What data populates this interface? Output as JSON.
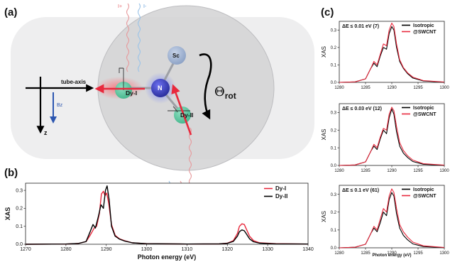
{
  "panels": {
    "a": {
      "label": "(a)",
      "current_plus": "I+",
      "current_minus": "I-",
      "tube_axis_label": "tube-axis",
      "bz_label": "Bz",
      "z_label": "z",
      "atoms": {
        "sc": "Sc",
        "n": "N",
        "dy1": "Dy-I",
        "dy2": "Dy-II"
      },
      "theta_main": "Θ",
      "theta_sub": "rot",
      "colors": {
        "red_arrow": "#e8293d",
        "blue_arrow": "#2c56b0",
        "n_atom": "#3a3fc4",
        "dy_atom": "#5ec9a3",
        "sc_atom": "#a7b9d6"
      }
    },
    "b": {
      "label": "(b)"
    },
    "c": {
      "label": "(c)"
    }
  },
  "chart_data": [
    {
      "id": "b",
      "type": "line",
      "xlabel": "Photon energy (eV)",
      "ylabel": "XAS",
      "xlim": [
        1270,
        1340
      ],
      "ylim": [
        0,
        0.34
      ],
      "xticks": [
        1270,
        1280,
        1290,
        1300,
        1310,
        1320,
        1330,
        1340
      ],
      "yticks": [
        0.0,
        0.1,
        0.2,
        0.3
      ],
      "legend": "top-right",
      "series": [
        {
          "name": "Dy-I",
          "color": "#e8293d",
          "x": [
            1270,
            1280,
            1283,
            1285,
            1286,
            1287,
            1287.6,
            1288.3,
            1288.8,
            1289.3,
            1289.7,
            1290.1,
            1290.6,
            1291.3,
            1292.2,
            1293.3,
            1294.5,
            1296.5,
            1300,
            1310,
            1318,
            1320,
            1321.5,
            1322.5,
            1323,
            1323.6,
            1324.2,
            1324.8,
            1325.5,
            1326.5,
            1328,
            1332,
            1340
          ],
          "y": [
            0.0,
            0.001,
            0.004,
            0.015,
            0.05,
            0.09,
            0.1,
            0.17,
            0.28,
            0.295,
            0.27,
            0.285,
            0.23,
            0.11,
            0.05,
            0.03,
            0.02,
            0.008,
            0.003,
            0.001,
            0.002,
            0.006,
            0.02,
            0.06,
            0.1,
            0.114,
            0.11,
            0.08,
            0.045,
            0.02,
            0.008,
            0.003,
            0.001
          ]
        },
        {
          "name": "Dy-II",
          "color": "#000000",
          "x": [
            1270,
            1280,
            1283,
            1285,
            1286,
            1286.7,
            1287.3,
            1288,
            1288.7,
            1289.3,
            1289.8,
            1290.2,
            1290.7,
            1291.3,
            1292.2,
            1293.3,
            1294.5,
            1296.5,
            1300,
            1310,
            1318,
            1320,
            1321.5,
            1322.5,
            1323,
            1323.6,
            1324.2,
            1324.8,
            1325.5,
            1326.5,
            1328,
            1332,
            1340
          ],
          "y": [
            0.0,
            0.001,
            0.004,
            0.015,
            0.07,
            0.11,
            0.09,
            0.15,
            0.22,
            0.2,
            0.3,
            0.325,
            0.25,
            0.1,
            0.045,
            0.028,
            0.018,
            0.008,
            0.003,
            0.001,
            0.002,
            0.005,
            0.016,
            0.045,
            0.07,
            0.08,
            0.075,
            0.055,
            0.03,
            0.014,
            0.006,
            0.002,
            0.001
          ]
        }
      ]
    },
    {
      "id": "c1",
      "type": "line",
      "annotation": "ΔE ≤ 0.01 eV (7)",
      "xlabel": "",
      "ylabel": "XAS",
      "xlim": [
        1280,
        1300
      ],
      "ylim": [
        0,
        0.35
      ],
      "xticks": [
        1280,
        1285,
        1290,
        1295,
        1300
      ],
      "yticks": [
        0.0,
        0.1,
        0.2,
        0.3
      ],
      "legend": "top-right",
      "series": [
        {
          "name": "Isotropic",
          "color": "#000000",
          "x": [
            1280,
            1283,
            1285,
            1286,
            1286.6,
            1287.2,
            1287.8,
            1288.4,
            1289,
            1289.5,
            1290,
            1290.4,
            1290.9,
            1291.5,
            1292.2,
            1293,
            1294,
            1296,
            1300
          ],
          "y": [
            0.0,
            0.003,
            0.02,
            0.08,
            0.11,
            0.09,
            0.15,
            0.2,
            0.19,
            0.28,
            0.32,
            0.3,
            0.2,
            0.12,
            0.08,
            0.05,
            0.025,
            0.008,
            0.001
          ]
        },
        {
          "name": "@SWCNT",
          "color": "#e8293d",
          "x": [
            1280,
            1283,
            1285,
            1286,
            1286.6,
            1287.2,
            1287.8,
            1288.4,
            1289,
            1289.5,
            1290,
            1290.4,
            1290.9,
            1291.5,
            1292.2,
            1293,
            1294,
            1296,
            1300
          ],
          "y": [
            0.0,
            0.003,
            0.02,
            0.08,
            0.12,
            0.1,
            0.16,
            0.22,
            0.21,
            0.3,
            0.34,
            0.32,
            0.22,
            0.13,
            0.085,
            0.055,
            0.03,
            0.01,
            0.002
          ]
        }
      ]
    },
    {
      "id": "c2",
      "type": "line",
      "annotation": "ΔE ≤ 0.03 eV (12)",
      "xlabel": "",
      "ylabel": "XAS",
      "xlim": [
        1280,
        1300
      ],
      "ylim": [
        0,
        0.35
      ],
      "xticks": [
        1280,
        1285,
        1290,
        1295,
        1300
      ],
      "yticks": [
        0.0,
        0.1,
        0.2,
        0.3
      ],
      "legend": "top-right",
      "series": [
        {
          "name": "Isotropic",
          "color": "#000000",
          "x": [
            1280,
            1283,
            1285,
            1286,
            1286.6,
            1287.2,
            1287.8,
            1288.4,
            1289,
            1289.5,
            1290,
            1290.4,
            1290.9,
            1291.5,
            1292.2,
            1293,
            1294,
            1296,
            1300
          ],
          "y": [
            0.0,
            0.003,
            0.02,
            0.08,
            0.11,
            0.09,
            0.15,
            0.2,
            0.18,
            0.27,
            0.32,
            0.29,
            0.19,
            0.11,
            0.07,
            0.045,
            0.022,
            0.007,
            0.001
          ]
        },
        {
          "name": "@SWCNT",
          "color": "#e8293d",
          "x": [
            1280,
            1283,
            1285,
            1286,
            1286.6,
            1287.2,
            1287.8,
            1288.4,
            1289,
            1289.5,
            1290,
            1290.4,
            1290.9,
            1291.5,
            1292.2,
            1293,
            1294,
            1296,
            1300
          ],
          "y": [
            0.0,
            0.003,
            0.02,
            0.08,
            0.12,
            0.1,
            0.16,
            0.21,
            0.2,
            0.29,
            0.33,
            0.31,
            0.22,
            0.13,
            0.085,
            0.055,
            0.03,
            0.01,
            0.002
          ]
        }
      ]
    },
    {
      "id": "c3",
      "type": "line",
      "annotation": "ΔE ≤ 0.1  eV (61)",
      "xlabel": "Photon energy (eV)",
      "ylabel": "XAS",
      "xlim": [
        1280,
        1300
      ],
      "ylim": [
        0,
        0.35
      ],
      "xticks": [
        1280,
        1285,
        1290,
        1295,
        1300
      ],
      "yticks": [
        0.0,
        0.1,
        0.2,
        0.3
      ],
      "legend": "top-right",
      "series": [
        {
          "name": "Isotropic",
          "color": "#000000",
          "x": [
            1280,
            1283,
            1285,
            1286,
            1286.6,
            1287.2,
            1287.8,
            1288.4,
            1289,
            1289.5,
            1290,
            1290.4,
            1290.9,
            1291.5,
            1292.2,
            1293,
            1294,
            1296,
            1300
          ],
          "y": [
            0.0,
            0.003,
            0.02,
            0.08,
            0.11,
            0.09,
            0.14,
            0.2,
            0.18,
            0.27,
            0.31,
            0.29,
            0.19,
            0.11,
            0.07,
            0.045,
            0.022,
            0.007,
            0.001
          ]
        },
        {
          "name": "@SWCNT",
          "color": "#e8293d",
          "x": [
            1280,
            1283,
            1285,
            1286,
            1286.6,
            1287.2,
            1287.8,
            1288.4,
            1289,
            1289.5,
            1290,
            1290.4,
            1290.9,
            1291.5,
            1292.2,
            1293,
            1294,
            1296,
            1300
          ],
          "y": [
            0.0,
            0.003,
            0.02,
            0.08,
            0.12,
            0.1,
            0.16,
            0.22,
            0.2,
            0.29,
            0.33,
            0.31,
            0.22,
            0.13,
            0.09,
            0.06,
            0.032,
            0.011,
            0.002
          ]
        }
      ]
    }
  ]
}
